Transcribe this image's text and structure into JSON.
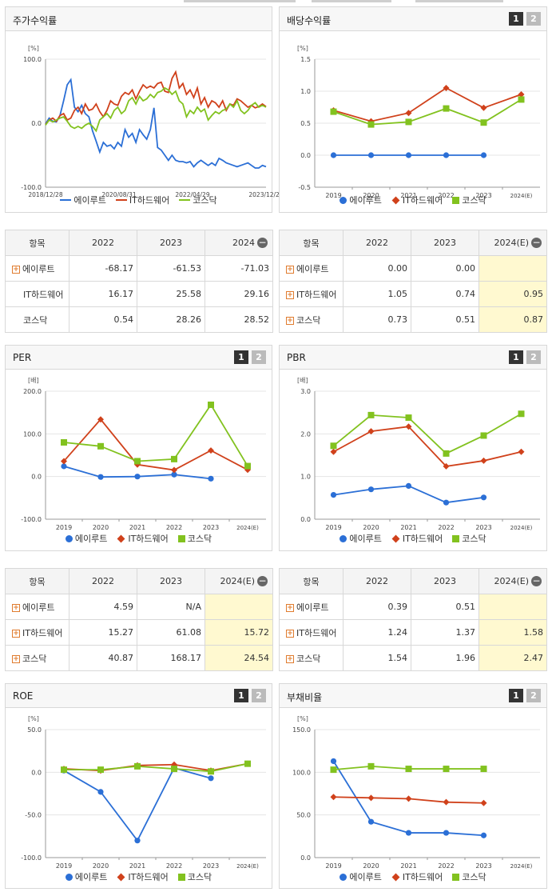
{
  "legend": {
    "a": "에이루트",
    "b": "IT하드웨어",
    "c": "코스닥"
  },
  "colors": {
    "a": "#2b6fd6",
    "b": "#d0411b",
    "c": "#82c21f"
  },
  "tabs": {
    "one": "1",
    "two": "2"
  },
  "stock_panel": {
    "title": "주가수익률",
    "chart_data": {
      "type": "line",
      "unit": "[%]",
      "ylim": [
        -100,
        100
      ],
      "yticks": [
        "100.0",
        "0.0",
        "-100.0"
      ],
      "xticks": [
        "2018/12/28",
        "2020/08/31",
        "2022/04/29",
        "2023/12/28"
      ],
      "series": [
        {
          "name": "에이루트",
          "values": [
            -1,
            8,
            3,
            2,
            12,
            35,
            60,
            68,
            25,
            18,
            28,
            15,
            10,
            -12,
            -28,
            -45,
            -30,
            -36,
            -34,
            -40,
            -30,
            -36,
            -10,
            -22,
            -16,
            -30,
            -10,
            -18,
            -25,
            -10,
            24,
            -38,
            -42,
            -50,
            -58,
            -50,
            -58,
            -60,
            -60,
            -62,
            -60,
            -68,
            -62,
            -58,
            -62,
            -66,
            -62,
            -66,
            -55,
            -58,
            -62,
            -64,
            -66,
            -68,
            -66,
            -64,
            -62,
            -66,
            -70,
            -70,
            -66,
            -68
          ]
        },
        {
          "name": "IT하드웨어",
          "values": [
            -2,
            5,
            8,
            3,
            12,
            15,
            5,
            8,
            20,
            25,
            15,
            30,
            20,
            22,
            30,
            18,
            10,
            20,
            35,
            30,
            28,
            42,
            48,
            45,
            52,
            38,
            50,
            60,
            55,
            58,
            55,
            62,
            64,
            50,
            48,
            70,
            80,
            55,
            62,
            45,
            52,
            40,
            55,
            30,
            40,
            25,
            35,
            32,
            25,
            35,
            20,
            30,
            28,
            38,
            35,
            30,
            25,
            28,
            24,
            26,
            30,
            26
          ]
        },
        {
          "name": "코스닥",
          "values": [
            -3,
            5,
            2,
            5,
            8,
            10,
            3,
            -5,
            -8,
            -5,
            -8,
            -3,
            0,
            -5,
            -12,
            5,
            10,
            15,
            8,
            20,
            25,
            15,
            20,
            35,
            40,
            30,
            42,
            35,
            38,
            45,
            40,
            48,
            50,
            55,
            52,
            45,
            50,
            35,
            30,
            10,
            20,
            15,
            25,
            18,
            22,
            5,
            12,
            18,
            15,
            20,
            22,
            30,
            25,
            35,
            20,
            15,
            20,
            28,
            32,
            25,
            28,
            25
          ]
        }
      ]
    }
  },
  "dividend_panel": {
    "title": "배당수익률",
    "chart_data": {
      "type": "line",
      "unit": "[%]",
      "ylim": [
        -0.5,
        1.5
      ],
      "yticks": [
        "1.5",
        "1.0",
        "0.5",
        "0.0",
        "-0.5"
      ],
      "categories": [
        "2019",
        "2020",
        "2021",
        "2022",
        "2023",
        "2024(E)"
      ],
      "series": [
        {
          "name": "에이루트",
          "values": [
            0.0,
            0.0,
            0.0,
            0.0,
            0.0,
            null
          ]
        },
        {
          "name": "IT하드웨어",
          "values": [
            0.7,
            0.53,
            0.66,
            1.05,
            0.74,
            0.95
          ]
        },
        {
          "name": "코스닥",
          "values": [
            0.68,
            0.48,
            0.52,
            0.73,
            0.51,
            0.87
          ]
        }
      ]
    }
  },
  "per_panel": {
    "title": "PER",
    "chart_data": {
      "type": "line",
      "unit": "[배]",
      "ylim": [
        -100,
        200
      ],
      "yticks": [
        "200.0",
        "100.0",
        "0.0",
        "-100.0"
      ],
      "categories": [
        "2019",
        "2020",
        "2021",
        "2022",
        "2023",
        "2024(E)"
      ],
      "series": [
        {
          "name": "에이루트",
          "values": [
            24,
            -1,
            0,
            4.59,
            -5,
            null
          ]
        },
        {
          "name": "IT하드웨어",
          "values": [
            36,
            134,
            28,
            15.27,
            61.08,
            15.72
          ]
        },
        {
          "name": "코스닥",
          "values": [
            80,
            71,
            36,
            40.87,
            168.17,
            24.54
          ]
        }
      ]
    }
  },
  "pbr_panel": {
    "title": "PBR",
    "chart_data": {
      "type": "line",
      "unit": "[배]",
      "ylim": [
        0,
        3
      ],
      "yticks": [
        "3.0",
        "2.0",
        "1.0",
        "0.0"
      ],
      "categories": [
        "2019",
        "2020",
        "2021",
        "2022",
        "2023",
        "2024(E)"
      ],
      "series": [
        {
          "name": "에이루트",
          "values": [
            0.57,
            0.7,
            0.78,
            0.39,
            0.51,
            null
          ]
        },
        {
          "name": "IT하드웨어",
          "values": [
            1.58,
            2.06,
            2.17,
            1.24,
            1.37,
            1.58
          ]
        },
        {
          "name": "코스닥",
          "values": [
            1.72,
            2.44,
            2.38,
            1.54,
            1.96,
            2.47
          ]
        }
      ]
    }
  },
  "roe_panel": {
    "title": "ROE",
    "chart_data": {
      "type": "line",
      "unit": "[%]",
      "ylim": [
        -100,
        50
      ],
      "yticks": [
        "50.0",
        "0.0",
        "-50.0",
        "-100.0"
      ],
      "categories": [
        "2019",
        "2020",
        "2021",
        "2022",
        "2023",
        "2024(E)"
      ],
      "series": [
        {
          "name": "에이루트",
          "values": [
            2,
            -23,
            -80,
            5,
            -7,
            null
          ]
        },
        {
          "name": "IT하드웨어",
          "values": [
            4,
            2,
            8,
            9,
            2,
            10
          ]
        },
        {
          "name": "코스닥",
          "values": [
            3,
            3,
            7,
            4,
            1,
            10
          ]
        }
      ]
    }
  },
  "debt_panel": {
    "title": "부채비율",
    "chart_data": {
      "type": "line",
      "unit": "[%]",
      "ylim": [
        0,
        150
      ],
      "yticks": [
        "150.0",
        "100.0",
        "50.0",
        "0.0"
      ],
      "categories": [
        "2019",
        "2020",
        "2021",
        "2022",
        "2023",
        "2024(E)"
      ],
      "series": [
        {
          "name": "에이루트",
          "values": [
            113,
            42,
            29,
            29,
            26,
            null
          ]
        },
        {
          "name": "IT하드웨어",
          "values": [
            71,
            70,
            69,
            65,
            64,
            null
          ]
        },
        {
          "name": "코스닥",
          "values": [
            103,
            107,
            104,
            104,
            104,
            null
          ]
        }
      ]
    }
  },
  "table_stock": {
    "headers": [
      "항목",
      "2022",
      "2023",
      "2024"
    ],
    "rows": [
      {
        "name": "에이루트",
        "vals": [
          "-68.17",
          "-61.53",
          "-71.03"
        ],
        "plus": true
      },
      {
        "name": "IT하드웨어",
        "vals": [
          "16.17",
          "25.58",
          "29.16"
        ],
        "plus": false
      },
      {
        "name": "코스닥",
        "vals": [
          "0.54",
          "28.26",
          "28.52"
        ],
        "plus": false
      }
    ]
  },
  "table_div": {
    "headers": [
      "항목",
      "2022",
      "2023",
      "2024(E)"
    ],
    "rows": [
      {
        "name": "에이루트",
        "vals": [
          "0.00",
          "0.00",
          ""
        ],
        "plus": true
      },
      {
        "name": "IT하드웨어",
        "vals": [
          "1.05",
          "0.74",
          "0.95"
        ],
        "plus": true
      },
      {
        "name": "코스닥",
        "vals": [
          "0.73",
          "0.51",
          "0.87"
        ],
        "plus": true
      }
    ]
  },
  "table_per": {
    "headers": [
      "항목",
      "2022",
      "2023",
      "2024(E)"
    ],
    "rows": [
      {
        "name": "에이루트",
        "vals": [
          "4.59",
          "N/A",
          ""
        ],
        "plus": true
      },
      {
        "name": "IT하드웨어",
        "vals": [
          "15.27",
          "61.08",
          "15.72"
        ],
        "plus": true
      },
      {
        "name": "코스닥",
        "vals": [
          "40.87",
          "168.17",
          "24.54"
        ],
        "plus": true
      }
    ]
  },
  "table_pbr": {
    "headers": [
      "항목",
      "2022",
      "2023",
      "2024(E)"
    ],
    "rows": [
      {
        "name": "에이루트",
        "vals": [
          "0.39",
          "0.51",
          ""
        ],
        "plus": true
      },
      {
        "name": "IT하드웨어",
        "vals": [
          "1.24",
          "1.37",
          "1.58"
        ],
        "plus": true
      },
      {
        "name": "코스닥",
        "vals": [
          "1.54",
          "1.96",
          "2.47"
        ],
        "plus": true
      }
    ]
  }
}
